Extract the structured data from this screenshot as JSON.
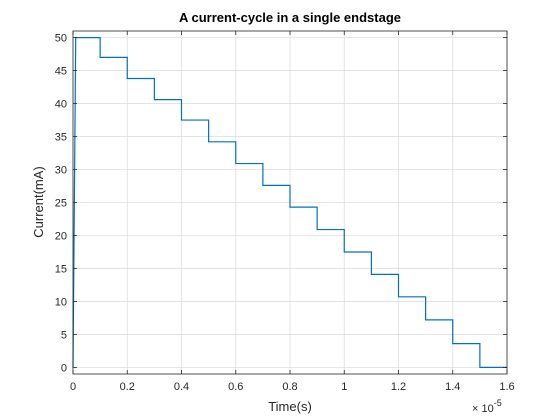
{
  "chart_data": {
    "type": "line",
    "title": "A current-cycle in a single endstage",
    "xlabel": "Time(s)",
    "ylabel": "Current(mA)",
    "x_exponent_label": "× 10",
    "x_exponent_power": "-5",
    "xlim": [
      0,
      1.6
    ],
    "ylim": [
      -1,
      51
    ],
    "x_ticks": [
      0,
      0.2,
      0.4,
      0.6,
      0.8,
      1,
      1.2,
      1.4,
      1.6
    ],
    "x_tick_labels": [
      "0",
      "0.2",
      "0.4",
      "0.6",
      "0.8",
      "1",
      "1.2",
      "1.4",
      "1.6"
    ],
    "y_ticks": [
      0,
      5,
      10,
      15,
      20,
      25,
      30,
      35,
      40,
      45,
      50
    ],
    "y_tick_labels": [
      "0",
      "5",
      "10",
      "15",
      "20",
      "25",
      "30",
      "35",
      "40",
      "45",
      "50"
    ],
    "grid": true,
    "line_color": "#0072BD",
    "series": [
      {
        "x": [
          0,
          0.01,
          0.1,
          0.1,
          0.2,
          0.2,
          0.3,
          0.3,
          0.4,
          0.4,
          0.5,
          0.5,
          0.6,
          0.6,
          0.7,
          0.7,
          0.8,
          0.8,
          0.9,
          0.9,
          1.0,
          1.0,
          1.1,
          1.1,
          1.2,
          1.2,
          1.3,
          1.3,
          1.4,
          1.4,
          1.5,
          1.5,
          1.6
        ],
        "y": [
          0,
          50,
          50,
          47,
          47,
          43.8,
          43.8,
          40.6,
          40.6,
          37.5,
          37.5,
          34.2,
          34.2,
          30.9,
          30.9,
          27.6,
          27.6,
          24.3,
          24.3,
          20.9,
          20.9,
          17.5,
          17.5,
          14.1,
          14.1,
          10.7,
          10.7,
          7.2,
          7.2,
          3.6,
          3.6,
          0,
          0
        ]
      }
    ]
  }
}
